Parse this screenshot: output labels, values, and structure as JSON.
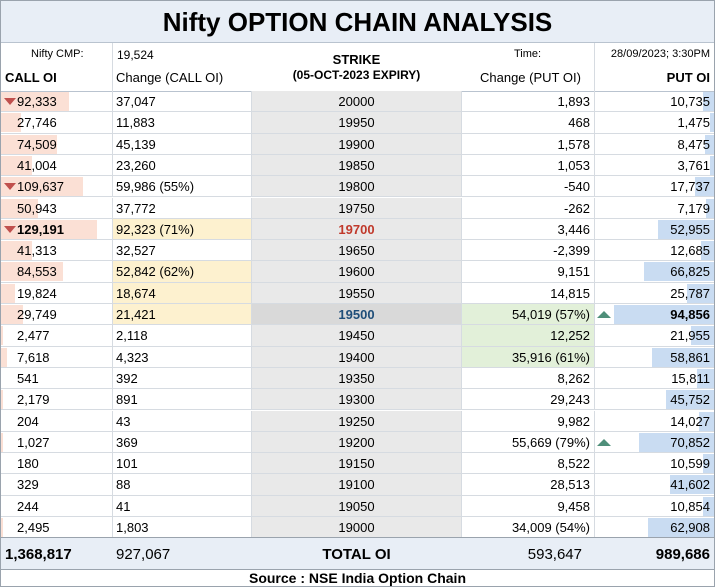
{
  "title": "Nifty OPTION CHAIN ANALYSIS",
  "header": {
    "cmp_label": "Nifty CMP:",
    "cmp_value": "19,524",
    "strike_label": "STRIKE",
    "expiry_label": "(05-OCT-2023 EXPIRY)",
    "time_label": "Time:",
    "time_value": "28/09/2023; 3:30PM",
    "call_oi_label": "CALL OI",
    "change_call_label": "Change (CALL OI)",
    "change_put_label": "Change (PUT OI)",
    "put_oi_label": "PUT OI"
  },
  "colors": {
    "call_bar": "#fbe0d5",
    "put_bar": "#c9dcf2",
    "call_highlight": "#fdf1cf",
    "put_highlight": "#e2f0d9",
    "max_call_strike": "#c0392b",
    "max_put_strike": "#1f4e79",
    "down_marker": "#c0504d",
    "up_marker": "#4f8f7a"
  },
  "rows": [
    {
      "call_oi": "92,333",
      "change_call": "37,047",
      "strike": "20000",
      "change_put": "1,893",
      "put_oi": "10,735",
      "call_frac": 0.71,
      "put_frac": 0.11,
      "call_marker": "down"
    },
    {
      "call_oi": "27,746",
      "change_call": "11,883",
      "strike": "19950",
      "change_put": "468",
      "put_oi": "1,475",
      "call_frac": 0.21,
      "put_frac": 0.02
    },
    {
      "call_oi": "74,509",
      "change_call": "45,139",
      "strike": "19900",
      "change_put": "1,578",
      "put_oi": "8,475",
      "call_frac": 0.58,
      "put_frac": 0.09
    },
    {
      "call_oi": "41,004",
      "change_call": "23,260",
      "strike": "19850",
      "change_put": "1,053",
      "put_oi": "3,761",
      "call_frac": 0.32,
      "put_frac": 0.04
    },
    {
      "call_oi": "109,637",
      "change_call": "59,986 (55%)",
      "strike": "19800",
      "change_put": "-540",
      "put_oi": "17,737",
      "call_frac": 0.85,
      "put_frac": 0.19,
      "call_marker": "down"
    },
    {
      "call_oi": "50,943",
      "change_call": "37,772",
      "strike": "19750",
      "change_put": "-262",
      "put_oi": "7,179",
      "call_frac": 0.39,
      "put_frac": 0.08
    },
    {
      "call_oi": "129,191",
      "change_call": "92,323 (71%)",
      "strike": "19700",
      "change_put": "3,446",
      "put_oi": "52,955",
      "call_frac": 1.0,
      "put_frac": 0.56,
      "call_marker": "down",
      "call_hl": true,
      "max_call": true
    },
    {
      "call_oi": "41,313",
      "change_call": "32,527",
      "strike": "19650",
      "change_put": "-2,399",
      "put_oi": "12,685",
      "call_frac": 0.32,
      "put_frac": 0.13
    },
    {
      "call_oi": "84,553",
      "change_call": "52,842 (62%)",
      "strike": "19600",
      "change_put": "9,151",
      "put_oi": "66,825",
      "call_frac": 0.65,
      "put_frac": 0.7,
      "call_hl": true
    },
    {
      "call_oi": "19,824",
      "change_call": "18,674",
      "strike": "19550",
      "change_put": "14,815",
      "put_oi": "25,787",
      "call_frac": 0.15,
      "put_frac": 0.27,
      "call_hl": true
    },
    {
      "call_oi": "29,749",
      "change_call": "21,421",
      "strike": "19500",
      "change_put": "54,019 (57%)",
      "put_oi": "94,856",
      "call_frac": 0.23,
      "put_frac": 1.0,
      "put_marker": "up",
      "call_hl": true,
      "put_hl": true,
      "atm": true,
      "max_put": true
    },
    {
      "call_oi": "2,477",
      "change_call": "2,118",
      "strike": "19450",
      "change_put": "12,252",
      "put_oi": "21,955",
      "call_frac": 0.02,
      "put_frac": 0.23,
      "put_hl": true
    },
    {
      "call_oi": "7,618",
      "change_call": "4,323",
      "strike": "19400",
      "change_put": "35,916 (61%)",
      "put_oi": "58,861",
      "call_frac": 0.06,
      "put_frac": 0.62,
      "put_hl": true
    },
    {
      "call_oi": "541",
      "change_call": "392",
      "strike": "19350",
      "change_put": "8,262",
      "put_oi": "15,811",
      "call_frac": 0.0,
      "put_frac": 0.17
    },
    {
      "call_oi": "2,179",
      "change_call": "891",
      "strike": "19300",
      "change_put": "29,243",
      "put_oi": "45,752",
      "call_frac": 0.02,
      "put_frac": 0.48
    },
    {
      "call_oi": "204",
      "change_call": "43",
      "strike": "19250",
      "change_put": "9,982",
      "put_oi": "14,027",
      "call_frac": 0.0,
      "put_frac": 0.15
    },
    {
      "call_oi": "1,027",
      "change_call": "369",
      "strike": "19200",
      "change_put": "55,669 (79%)",
      "put_oi": "70,852",
      "call_frac": 0.01,
      "put_frac": 0.75,
      "put_marker": "up"
    },
    {
      "call_oi": "180",
      "change_call": "101",
      "strike": "19150",
      "change_put": "8,522",
      "put_oi": "10,599",
      "call_frac": 0.0,
      "put_frac": 0.11
    },
    {
      "call_oi": "329",
      "change_call": "88",
      "strike": "19100",
      "change_put": "28,513",
      "put_oi": "41,602",
      "call_frac": 0.0,
      "put_frac": 0.44
    },
    {
      "call_oi": "244",
      "change_call": "41",
      "strike": "19050",
      "change_put": "9,458",
      "put_oi": "10,854",
      "call_frac": 0.0,
      "put_frac": 0.11
    },
    {
      "call_oi": "2,495",
      "change_call": "1,803",
      "strike": "19000",
      "change_put": "34,009 (54%)",
      "put_oi": "62,908",
      "call_frac": 0.02,
      "put_frac": 0.66
    }
  ],
  "totals": {
    "call_oi": "1,368,817",
    "change_call": "927,067",
    "label": "TOTAL OI",
    "change_put": "593,647",
    "put_oi": "989,686"
  },
  "source": "Source : NSE India Option Chain"
}
